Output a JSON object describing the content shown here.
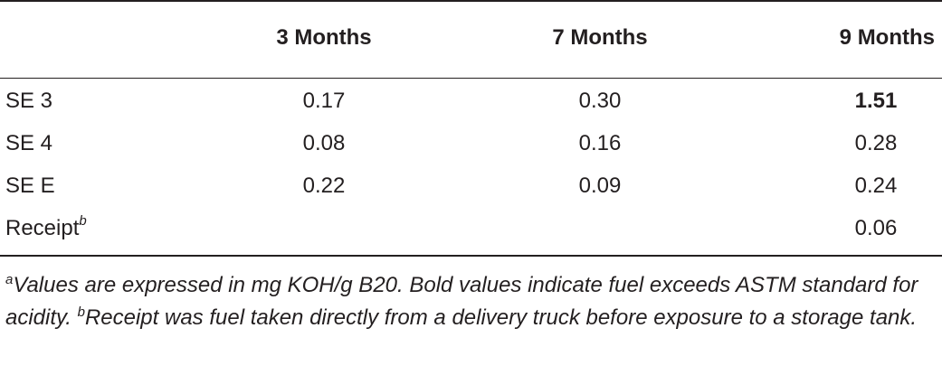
{
  "table": {
    "columns": [
      "",
      "3 Months",
      "7 Months",
      "9 Months"
    ],
    "rows": [
      {
        "label": "SE 3",
        "label_sup": "",
        "m3": "0.17",
        "m7": "0.30",
        "m9": "1.51",
        "m9_bold": true
      },
      {
        "label": "SE 4",
        "label_sup": "",
        "m3": "0.08",
        "m7": "0.16",
        "m9": "0.28",
        "m9_bold": false
      },
      {
        "label": "SE E",
        "label_sup": "",
        "m3": "0.22",
        "m7": "0.09",
        "m9": "0.24",
        "m9_bold": false
      },
      {
        "label": "Receipt",
        "label_sup": "b",
        "m3": "",
        "m7": "",
        "m9": "0.06",
        "m9_bold": false
      }
    ]
  },
  "footnotes": {
    "a_mark": "a",
    "a_text": "Values are expressed in mg KOH/g B20. Bold values indicate fuel exceeds ASTM standard for acidity.",
    "b_mark": "b",
    "b_text": "Receipt was fuel taken directly from a delivery truck before exposure to a storage tank."
  }
}
